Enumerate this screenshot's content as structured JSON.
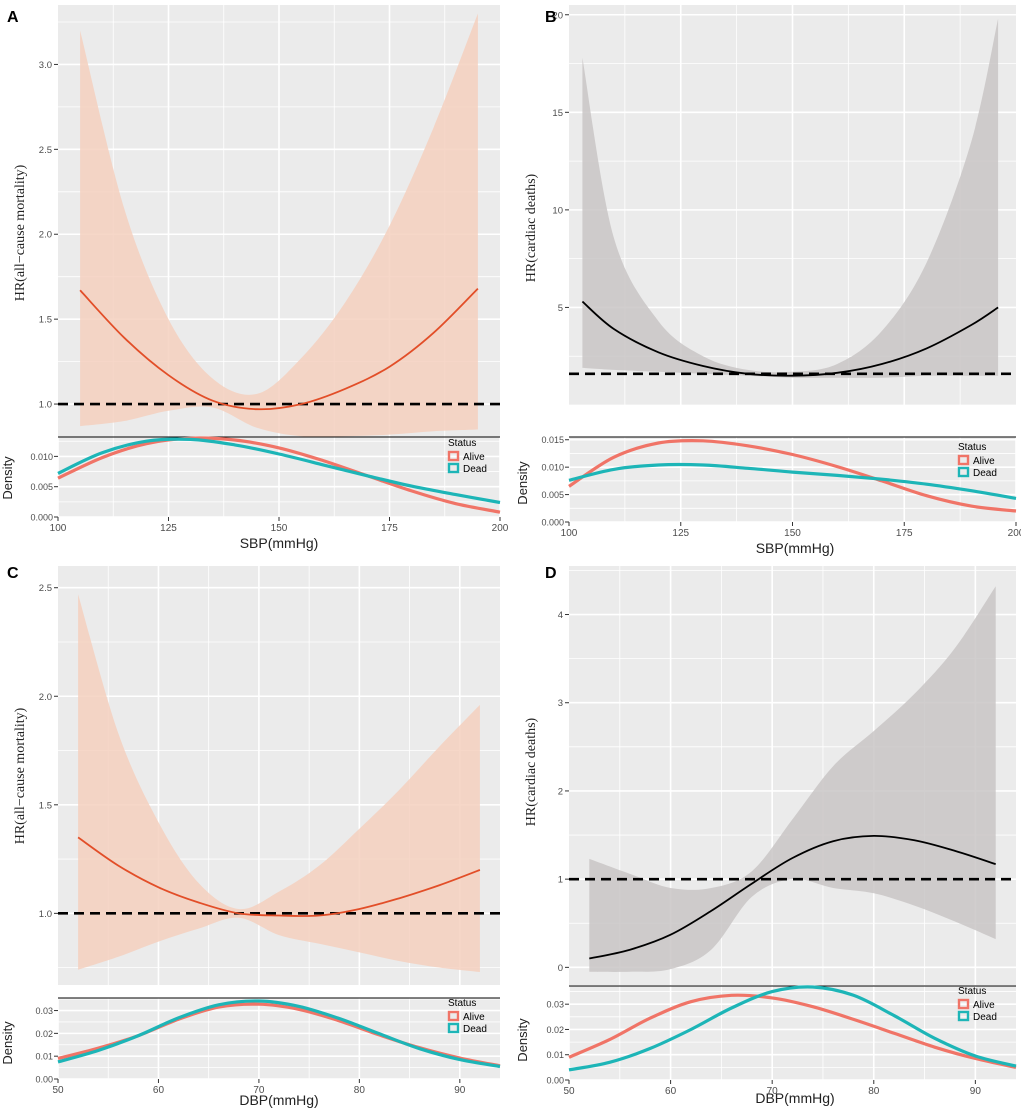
{
  "colors": {
    "alive": "#F07467",
    "dead": "#1DB5B7",
    "hr_curve_orange": "#E24E28",
    "hr_band_orange": "#F5D0BE",
    "hr_curve_black": "#000000",
    "hr_band_gray": "#C9C5C5",
    "panel_bg": "#EBEBEB",
    "grid": "#FFFFFF"
  },
  "chart_data": [
    {
      "panel": "A",
      "type": "line",
      "ylabel": "HR(all−cause mortality)",
      "xlabel": "SBP(mmHg)",
      "reference_line": 1.0,
      "hr": {
        "ylim": [
          0.7,
          3.35
        ],
        "yticks": [
          1.0,
          1.5,
          2.0,
          2.5,
          3.0
        ],
        "ytick_labels": [
          "1.0",
          "1.5",
          "2.0",
          "2.5",
          "3.0"
        ],
        "x": [
          105,
          115,
          125,
          135,
          145,
          155,
          165,
          175,
          185,
          195
        ],
        "y": [
          1.67,
          1.39,
          1.17,
          1.02,
          0.97,
          1.0,
          1.09,
          1.22,
          1.42,
          1.68
        ],
        "lower": [
          0.87,
          0.9,
          0.96,
          0.98,
          0.86,
          0.81,
          0.81,
          0.82,
          0.84,
          0.85
        ],
        "upper": [
          3.2,
          2.15,
          1.5,
          1.15,
          1.06,
          1.27,
          1.6,
          2.05,
          2.63,
          3.3
        ]
      },
      "density": {
        "ylim": [
          0,
          0.0132
        ],
        "yticks": [
          0.0,
          0.005,
          0.01
        ],
        "ytick_labels": [
          "0.000",
          "0.005",
          "0.010"
        ],
        "xlim": [
          100,
          200
        ],
        "xticks": [
          100,
          125,
          150,
          175,
          200
        ],
        "xtick_labels": [
          "100",
          "125",
          "150",
          "175",
          "200"
        ],
        "ylabel": "Density",
        "legend_title": "Status",
        "x": [
          100,
          110,
          120,
          130,
          140,
          150,
          160,
          170,
          180,
          190,
          200
        ],
        "series": [
          {
            "name": "Alive",
            "values": [
              0.0064,
              0.0098,
              0.0121,
              0.013,
              0.0127,
              0.0114,
              0.0093,
              0.0068,
              0.0043,
              0.0022,
              0.0008
            ]
          },
          {
            "name": "Dead",
            "values": [
              0.0072,
              0.0106,
              0.0125,
              0.0128,
              0.0119,
              0.0104,
              0.0086,
              0.0068,
              0.0051,
              0.0037,
              0.0024
            ]
          }
        ]
      }
    },
    {
      "panel": "B",
      "type": "line",
      "ylabel": "HR(cardiac deaths)",
      "xlabel": "SBP(mmHg)",
      "reference_line": 1.6,
      "hr": {
        "ylim": [
          0,
          20.5
        ],
        "yticks": [
          5,
          10,
          15,
          20
        ],
        "ytick_labels": [
          "5",
          "10",
          "15",
          "20"
        ],
        "x": [
          103,
          110,
          120,
          130,
          140,
          150,
          160,
          170,
          180,
          190,
          196
        ],
        "y": [
          5.3,
          3.9,
          2.7,
          2.0,
          1.6,
          1.5,
          1.65,
          2.1,
          2.9,
          4.1,
          5.0
        ],
        "lower": [
          1.9,
          1.8,
          1.7,
          1.6,
          1.5,
          1.4,
          1.4,
          1.4,
          1.5,
          1.5,
          1.5
        ],
        "upper": [
          17.8,
          8.6,
          4.3,
          2.5,
          1.8,
          1.7,
          2.1,
          3.8,
          7.3,
          13.5,
          19.8
        ]
      },
      "density": {
        "ylim": [
          0,
          0.0155
        ],
        "yticks": [
          0.0,
          0.005,
          0.01,
          0.015
        ],
        "ytick_labels": [
          "0.000",
          "0.005",
          "0.010",
          "0.015"
        ],
        "xlim": [
          100,
          200
        ],
        "xticks": [
          100,
          125,
          150,
          175,
          200
        ],
        "xtick_labels": [
          "100",
          "125",
          "150",
          "175",
          "200"
        ],
        "ylabel": "Density",
        "legend_title": "Status",
        "x": [
          100,
          110,
          120,
          130,
          140,
          150,
          160,
          170,
          180,
          190,
          200
        ],
        "series": [
          {
            "name": "Alive",
            "values": [
              0.0065,
              0.0118,
              0.0144,
              0.0148,
              0.0139,
              0.0123,
              0.0101,
              0.0075,
              0.0048,
              0.0029,
              0.002
            ]
          },
          {
            "name": "Dead",
            "values": [
              0.0076,
              0.0096,
              0.0104,
              0.0104,
              0.0098,
              0.0091,
              0.0085,
              0.0078,
              0.0069,
              0.0057,
              0.0043
            ]
          }
        ]
      }
    },
    {
      "panel": "C",
      "type": "line",
      "ylabel": "HR(all−cause mortality)",
      "xlabel": "DBP(mmHg)",
      "reference_line": 1.0,
      "hr": {
        "ylim": [
          0.67,
          2.6
        ],
        "yticks": [
          1.0,
          1.5,
          2.0,
          2.5
        ],
        "ytick_labels": [
          "1.0",
          "1.5",
          "2.0",
          "2.5"
        ],
        "x": [
          52,
          56,
          60,
          64,
          68,
          72,
          76,
          80,
          84,
          88,
          92
        ],
        "y": [
          1.35,
          1.22,
          1.12,
          1.05,
          1.0,
          0.99,
          0.99,
          1.02,
          1.07,
          1.13,
          1.2
        ],
        "lower": [
          0.74,
          0.8,
          0.87,
          0.93,
          0.98,
          0.9,
          0.86,
          0.82,
          0.78,
          0.75,
          0.73
        ],
        "upper": [
          2.47,
          1.83,
          1.42,
          1.14,
          1.02,
          1.1,
          1.22,
          1.39,
          1.57,
          1.77,
          1.96
        ]
      },
      "density": {
        "ylim": [
          0,
          0.0355
        ],
        "yticks": [
          0.0,
          0.01,
          0.02,
          0.03
        ],
        "ytick_labels": [
          "0.00",
          "0.01",
          "0.02",
          "0.03"
        ],
        "xlim": [
          50,
          94
        ],
        "xticks": [
          50,
          60,
          70,
          80,
          90
        ],
        "xtick_labels": [
          "50",
          "60",
          "70",
          "80",
          "90"
        ],
        "ylabel": "Density",
        "legend_title": "Status",
        "x": [
          50,
          54,
          58,
          62,
          66,
          70,
          74,
          78,
          82,
          86,
          90,
          94
        ],
        "series": [
          {
            "name": "Alive",
            "values": [
              0.009,
              0.0135,
              0.019,
              0.0262,
              0.0315,
              0.0328,
              0.0305,
              0.0255,
              0.0193,
              0.0137,
              0.0092,
              0.0058
            ]
          },
          {
            "name": "Dead",
            "values": [
              0.0075,
              0.0125,
              0.019,
              0.0268,
              0.0325,
              0.0342,
              0.0318,
              0.0265,
              0.0198,
              0.0133,
              0.0085,
              0.0055
            ]
          }
        ]
      }
    },
    {
      "panel": "D",
      "type": "line",
      "ylabel": "HR(cardiac deaths)",
      "xlabel": "DBP(mmHg)",
      "reference_line": 1.0,
      "hr": {
        "ylim": [
          -0.2,
          4.55
        ],
        "yticks": [
          0,
          1,
          2,
          3,
          4
        ],
        "ytick_labels": [
          "0",
          "1",
          "2",
          "3",
          "4"
        ],
        "x": [
          52,
          56,
          60,
          64,
          68,
          72,
          76,
          80,
          84,
          88,
          92
        ],
        "y": [
          0.1,
          0.2,
          0.37,
          0.64,
          0.95,
          1.24,
          1.43,
          1.49,
          1.44,
          1.32,
          1.17
        ],
        "lower": [
          -0.05,
          -0.05,
          -0.02,
          0.2,
          0.8,
          1.0,
          0.9,
          0.84,
          0.7,
          0.52,
          0.32
        ],
        "upper": [
          1.23,
          1.06,
          0.9,
          0.9,
          1.09,
          1.68,
          2.28,
          2.68,
          3.1,
          3.62,
          4.32
        ]
      },
      "density": {
        "ylim": [
          0,
          0.0372
        ],
        "yticks": [
          0.0,
          0.01,
          0.02,
          0.03
        ],
        "ytick_labels": [
          "0.00",
          "0.01",
          "0.02",
          "0.03"
        ],
        "xlim": [
          50,
          94
        ],
        "xticks": [
          50,
          60,
          70,
          80,
          90
        ],
        "xtick_labels": [
          "50",
          "60",
          "70",
          "80",
          "90"
        ],
        "ylabel": "Density",
        "legend_title": "Status",
        "x": [
          50,
          54,
          58,
          62,
          66,
          70,
          74,
          78,
          82,
          86,
          90,
          94
        ],
        "series": [
          {
            "name": "Alive",
            "values": [
              0.009,
              0.016,
              0.0245,
              0.031,
              0.0335,
              0.0325,
              0.029,
              0.024,
              0.0185,
              0.013,
              0.0085,
              0.005
            ]
          },
          {
            "name": "Dead",
            "values": [
              0.004,
              0.007,
              0.0125,
              0.02,
              0.0285,
              0.035,
              0.0368,
              0.0335,
              0.0255,
              0.0165,
              0.0095,
              0.0055
            ]
          }
        ]
      }
    }
  ]
}
